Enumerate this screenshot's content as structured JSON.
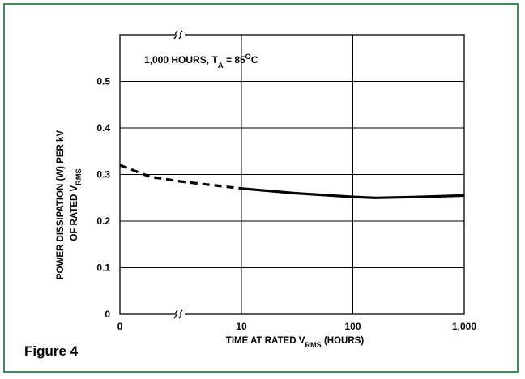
{
  "figure_label": "Figure 4",
  "colors": {
    "border": "#3f8a5e",
    "line": "#000000"
  },
  "chart_data": {
    "type": "line",
    "title": "",
    "annotation": {
      "parts": [
        {
          "text": "1,000 HOURS, T",
          "role": "normal"
        },
        {
          "text": "A",
          "role": "sub"
        },
        {
          "text": " = 85",
          "role": "normal"
        },
        {
          "text": "O",
          "role": "super"
        },
        {
          "text": "C",
          "role": "normal"
        }
      ]
    },
    "xlabel_parts": [
      {
        "text": "TIME AT RATED V",
        "role": "normal"
      },
      {
        "text": "RMS",
        "role": "sub"
      },
      {
        "text": " (HOURS)",
        "role": "normal"
      }
    ],
    "ylabel_line1": "POWER DISSIPATION (W) PER kV",
    "ylabel_line2_parts": [
      {
        "text": "OF RATED V",
        "role": "normal"
      },
      {
        "text": "RMS",
        "role": "sub"
      }
    ],
    "x_scale": "log (broken axis between 0 and 10)",
    "x_ticks": [
      {
        "value": 0,
        "label": "0"
      },
      {
        "value": 10,
        "label": "10"
      },
      {
        "value": 100,
        "label": "100"
      },
      {
        "value": 1000,
        "label": "1,000"
      }
    ],
    "ylim": [
      0,
      0.6
    ],
    "y_ticks": [
      {
        "value": 0,
        "label": "0"
      },
      {
        "value": 0.1,
        "label": "0.1"
      },
      {
        "value": 0.2,
        "label": "0.2"
      },
      {
        "value": 0.3,
        "label": "0.3"
      },
      {
        "value": 0.4,
        "label": "0.4"
      },
      {
        "value": 0.5,
        "label": "0.5"
      }
    ],
    "grid": true,
    "axis_break": true,
    "series": [
      {
        "style": "dashed",
        "points": [
          [
            0,
            0.32
          ],
          [
            1,
            0.31
          ],
          [
            2.5,
            0.295
          ],
          [
            5,
            0.285
          ],
          [
            10,
            0.27
          ]
        ]
      },
      {
        "style": "solid",
        "points": [
          [
            10,
            0.27
          ],
          [
            30,
            0.26
          ],
          [
            100,
            0.252
          ],
          [
            160,
            0.25
          ],
          [
            400,
            0.252
          ],
          [
            1000,
            0.255
          ]
        ]
      }
    ]
  }
}
